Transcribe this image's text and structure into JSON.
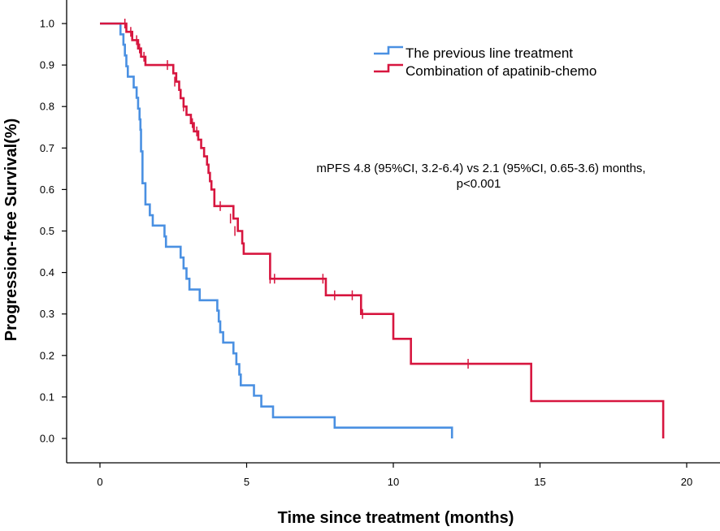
{
  "chart_data": {
    "type": "line",
    "subtype": "kaplan-meier",
    "title": "",
    "xlabel": "Time since treatment (months)",
    "ylabel": "Progression-free Survival(%)",
    "xlim": [
      0,
      21
    ],
    "ylim": [
      0,
      1.0
    ],
    "xticks": [
      0,
      5,
      10,
      15,
      20
    ],
    "yticks": [
      0.0,
      0.1,
      0.2,
      0.3,
      0.4,
      0.5,
      0.6,
      0.7,
      0.8,
      0.9,
      1.0
    ],
    "grid": false,
    "legend_position": "top-right",
    "annotation": {
      "line1": "mPFS  4.8 (95%CI, 3.2-6.4) vs 2.1 (95%CI, 0.65-3.6) months,",
      "line2": "p<0.001"
    },
    "series": [
      {
        "name": "The previous line treatment",
        "color": "#4a90e2",
        "steps": [
          [
            0,
            1.0
          ],
          [
            0.7,
            0.974
          ],
          [
            0.8,
            0.949
          ],
          [
            0.85,
            0.923
          ],
          [
            0.9,
            0.897
          ],
          [
            0.95,
            0.872
          ],
          [
            1.15,
            0.846
          ],
          [
            1.25,
            0.821
          ],
          [
            1.3,
            0.795
          ],
          [
            1.35,
            0.769
          ],
          [
            1.38,
            0.744
          ],
          [
            1.4,
            0.692
          ],
          [
            1.45,
            0.615
          ],
          [
            1.55,
            0.564
          ],
          [
            1.7,
            0.538
          ],
          [
            1.8,
            0.513
          ],
          [
            2.2,
            0.487
          ],
          [
            2.25,
            0.462
          ],
          [
            2.75,
            0.436
          ],
          [
            2.85,
            0.41
          ],
          [
            2.95,
            0.385
          ],
          [
            3.05,
            0.359
          ],
          [
            3.4,
            0.333
          ],
          [
            4.0,
            0.308
          ],
          [
            4.05,
            0.282
          ],
          [
            4.1,
            0.256
          ],
          [
            4.2,
            0.231
          ],
          [
            4.55,
            0.205
          ],
          [
            4.65,
            0.179
          ],
          [
            4.75,
            0.154
          ],
          [
            4.8,
            0.128
          ],
          [
            5.25,
            0.103
          ],
          [
            5.5,
            0.077
          ],
          [
            5.9,
            0.051
          ],
          [
            8.0,
            0.026
          ],
          [
            12.0,
            0.0
          ]
        ],
        "censored": []
      },
      {
        "name": "Combination of apatinib-chemo",
        "color": "#d7163f",
        "steps": [
          [
            0,
            1.0
          ],
          [
            0.9,
            0.98
          ],
          [
            1.1,
            0.96
          ],
          [
            1.3,
            0.94
          ],
          [
            1.4,
            0.92
          ],
          [
            1.55,
            0.9
          ],
          [
            2.5,
            0.88
          ],
          [
            2.6,
            0.86
          ],
          [
            2.7,
            0.84
          ],
          [
            2.75,
            0.82
          ],
          [
            2.85,
            0.8
          ],
          [
            2.95,
            0.78
          ],
          [
            3.1,
            0.76
          ],
          [
            3.2,
            0.74
          ],
          [
            3.35,
            0.72
          ],
          [
            3.45,
            0.7
          ],
          [
            3.55,
            0.68
          ],
          [
            3.65,
            0.66
          ],
          [
            3.7,
            0.64
          ],
          [
            3.75,
            0.62
          ],
          [
            3.8,
            0.6
          ],
          [
            3.9,
            0.56
          ],
          [
            4.55,
            0.53
          ],
          [
            4.7,
            0.5
          ],
          [
            4.85,
            0.47
          ],
          [
            4.9,
            0.445
          ],
          [
            5.8,
            0.385
          ],
          [
            7.7,
            0.345
          ],
          [
            8.9,
            0.3
          ],
          [
            10.0,
            0.24
          ],
          [
            10.6,
            0.18
          ],
          [
            14.7,
            0.09
          ],
          [
            19.2,
            0.0
          ]
        ],
        "censored": [
          [
            0.85,
            1.0
          ],
          [
            1.05,
            0.98
          ],
          [
            1.25,
            0.96
          ],
          [
            1.35,
            0.94
          ],
          [
            1.5,
            0.92
          ],
          [
            2.3,
            0.9
          ],
          [
            2.55,
            0.86
          ],
          [
            2.85,
            0.8
          ],
          [
            3.15,
            0.76
          ],
          [
            3.3,
            0.74
          ],
          [
            4.1,
            0.56
          ],
          [
            4.45,
            0.53
          ],
          [
            4.6,
            0.5
          ],
          [
            5.8,
            0.385
          ],
          [
            5.95,
            0.385
          ],
          [
            7.6,
            0.385
          ],
          [
            8.0,
            0.345
          ],
          [
            8.6,
            0.345
          ],
          [
            8.95,
            0.3
          ],
          [
            12.55,
            0.18
          ]
        ]
      }
    ]
  }
}
